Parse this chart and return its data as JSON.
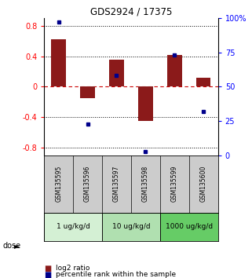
{
  "title": "GDS2924 / 17375",
  "samples": [
    "GSM135595",
    "GSM135596",
    "GSM135597",
    "GSM135598",
    "GSM135599",
    "GSM135600"
  ],
  "log2_ratio": [
    0.62,
    -0.15,
    0.35,
    -0.45,
    0.42,
    0.12
  ],
  "percentile_rank": [
    97,
    23,
    58,
    3,
    73,
    32
  ],
  "bar_color": "#8B1A1A",
  "dot_color": "#00008B",
  "ylim_left": [
    -0.9,
    0.9
  ],
  "ylim_right": [
    0,
    100
  ],
  "yticks_left": [
    -0.8,
    -0.4,
    0.0,
    0.4,
    0.8
  ],
  "yticks_right": [
    0,
    25,
    50,
    75,
    100
  ],
  "ytick_labels_right": [
    "0",
    "25",
    "50",
    "75",
    "100%"
  ],
  "dose_groups": [
    {
      "label": "1 ug/kg/d",
      "color": "#d4f0d4"
    },
    {
      "label": "10 ug/kg/d",
      "color": "#b0e0b0"
    },
    {
      "label": "1000 ug/kg/d",
      "color": "#66cc66"
    }
  ],
  "legend_bar": "log2 ratio",
  "legend_dot": "percentile rank within the sample",
  "hline_color": "#cc0000",
  "dotline_color": "black",
  "background_color": "#ffffff",
  "plot_bg": "#ffffff",
  "sample_bg": "#cccccc",
  "bar_width": 0.5
}
